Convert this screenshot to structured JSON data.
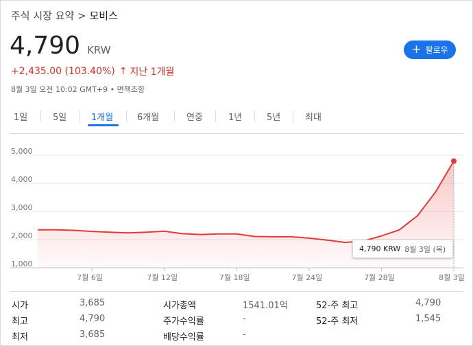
{
  "breadcrumb": {
    "parent": "주식 시장 요약",
    "sep": ">",
    "current": "모비스"
  },
  "quote": {
    "price": "4,790",
    "currency": "KRW",
    "change": "+2,435.00 (103.40%)",
    "arrow": "↑",
    "period": "지난 1개월",
    "timestamp": "8월 3일 오전 10:02 GMT+9 • 면책조항"
  },
  "follow_button": {
    "icon": "plus-icon",
    "label": "팔로우"
  },
  "tabs": [
    {
      "label": "1일",
      "active": false
    },
    {
      "label": "5일",
      "active": false
    },
    {
      "label": "1개월",
      "active": true
    },
    {
      "label": "6개월",
      "active": false
    },
    {
      "label": "연중",
      "active": false
    },
    {
      "label": "1년",
      "active": false
    },
    {
      "label": "5년",
      "active": false
    },
    {
      "label": "최대",
      "active": false
    }
  ],
  "tooltip": {
    "price": "4,790 KRW",
    "date": "8월 3일 (목)"
  },
  "chart_data": {
    "type": "area",
    "title": "",
    "xlabel": "",
    "ylabel": "",
    "ylim": [
      1000,
      5000
    ],
    "yticks": [
      "5,000",
      "4,000",
      "3,000",
      "2,000",
      "1,000"
    ],
    "xticks": [
      "7월 6일",
      "7월 12일",
      "7월 18일",
      "7월 24일",
      "7월 28일",
      "8월 3일"
    ],
    "x": [
      "7월 3일",
      "7월 4일",
      "7월 5일",
      "7월 6일",
      "7월 7일",
      "7월 10일",
      "7월 11일",
      "7월 12일",
      "7월 13일",
      "7월 14일",
      "7월 17일",
      "7월 18일",
      "7월 19일",
      "7월 20일",
      "7월 21일",
      "7월 24일",
      "7월 25일",
      "7월 26일",
      "7월 27일",
      "7월 28일",
      "7월 31일",
      "8월 1일",
      "8월 2일",
      "8월 3일"
    ],
    "values": [
      2350,
      2350,
      2330,
      2290,
      2260,
      2240,
      2260,
      2300,
      2210,
      2180,
      2200,
      2200,
      2110,
      2100,
      2100,
      2050,
      1980,
      1900,
      1950,
      2130,
      2350,
      2850,
      3700,
      4790
    ],
    "series_color": "#e53935",
    "grid": true
  },
  "stats": [
    {
      "label": "시가",
      "value": "3,685"
    },
    {
      "label": "최고",
      "value": "4,790"
    },
    {
      "label": "최저",
      "value": "3,685"
    },
    {
      "label": "시가총액",
      "value": "1541.01억"
    },
    {
      "label": "주가수익률",
      "value": "-"
    },
    {
      "label": "배당수익률",
      "value": "-"
    },
    {
      "label": "52-주 최고",
      "value": "4,790"
    },
    {
      "label": "52-주 최저",
      "value": "1,545"
    }
  ]
}
